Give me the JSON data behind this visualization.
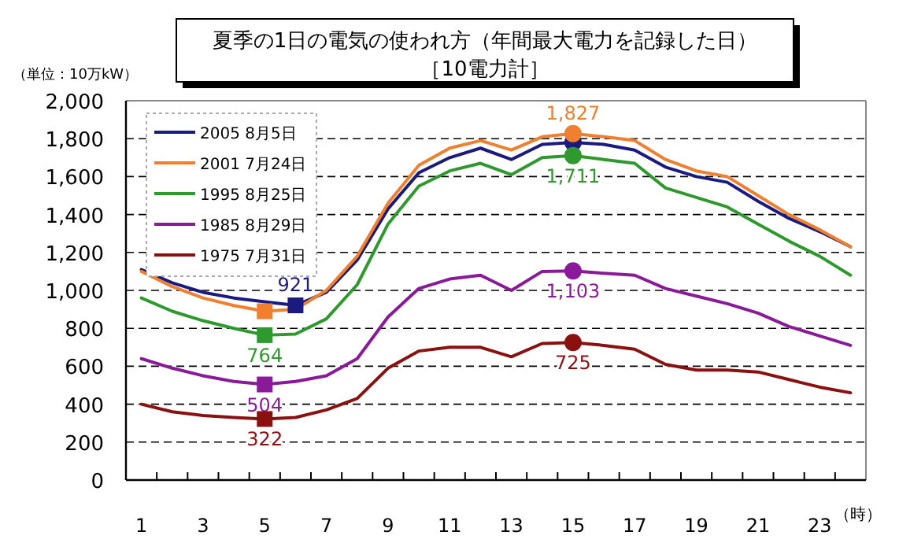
{
  "chart_data": {
    "type": "line",
    "title": "夏季の1日の電気の使われ方（年間最大電力を記録した日）",
    "subtitle": "［10電力計］",
    "ylabel": "（単位：10万kW）",
    "xlabel": "（時）",
    "xlim": [
      0.5,
      24.5
    ],
    "xticks": [
      {
        "value": 1,
        "label": "1"
      },
      {
        "value": 3,
        "label": "3"
      },
      {
        "value": 5,
        "label": "5"
      },
      {
        "value": 7,
        "label": "7"
      },
      {
        "value": 9,
        "label": "9"
      },
      {
        "value": 11,
        "label": "11"
      },
      {
        "value": 13,
        "label": "13"
      },
      {
        "value": 15,
        "label": "15"
      },
      {
        "value": 17,
        "label": "17"
      },
      {
        "value": 19,
        "label": "19"
      },
      {
        "value": 21,
        "label": "21"
      },
      {
        "value": 23,
        "label": "23"
      },
      {
        "value": 1.5,
        "label": null
      },
      {
        "value": 2.5,
        "label": null
      },
      {
        "value": 3.5,
        "label": null
      },
      {
        "value": 4.5,
        "label": null
      },
      {
        "value": 5.5,
        "label": null
      },
      {
        "value": 6.5,
        "label": null
      },
      {
        "value": 7.5,
        "label": null
      },
      {
        "value": 8.5,
        "label": null
      },
      {
        "value": 9.5,
        "label": null
      },
      {
        "value": 10.5,
        "label": null
      },
      {
        "value": 11.5,
        "label": null
      },
      {
        "value": 12.5,
        "label": null
      },
      {
        "value": 13.5,
        "label": null
      },
      {
        "value": 14.5,
        "label": null
      },
      {
        "value": 15.5,
        "label": null
      },
      {
        "value": 16.5,
        "label": null
      },
      {
        "value": 17.5,
        "label": null
      },
      {
        "value": 18.5,
        "label": null
      },
      {
        "value": 19.5,
        "label": null
      },
      {
        "value": 20.5,
        "label": null
      },
      {
        "value": 21.5,
        "label": null
      },
      {
        "value": 22.5,
        "label": null
      },
      {
        "value": 23.5,
        "label": null
      }
    ],
    "ylim": [
      0,
      2000
    ],
    "yticks": [
      {
        "value": 0,
        "label": "0"
      },
      {
        "value": 200,
        "label": "200"
      },
      {
        "value": 400,
        "label": "400"
      },
      {
        "value": 600,
        "label": "600"
      },
      {
        "value": 800,
        "label": "800"
      },
      {
        "value": 1000,
        "label": "1,000"
      },
      {
        "value": 1200,
        "label": "1,200"
      },
      {
        "value": 1400,
        "label": "1,400"
      },
      {
        "value": 1600,
        "label": "1,600"
      },
      {
        "value": 1800,
        "label": "1,800"
      },
      {
        "value": 2000,
        "label": "2,000"
      }
    ],
    "grid": "y",
    "legend": "top left",
    "marker": "none",
    "line_style": "solid",
    "x": [
      1,
      2,
      3,
      4,
      5,
      6,
      7,
      8,
      9,
      10,
      11,
      12,
      13,
      14,
      15,
      16,
      17,
      18,
      19,
      20,
      21,
      22,
      23,
      24
    ],
    "series": [
      {
        "name": "2005 8月5日",
        "color": "#1a1a80",
        "values": [
          1110,
          1040,
          990,
          960,
          940,
          921,
          990,
          1160,
          1430,
          1620,
          1700,
          1750,
          1690,
          1770,
          1780,
          1770,
          1740,
          1650,
          1600,
          1570,
          1470,
          1380,
          1310,
          1230
        ]
      },
      {
        "name": "2001 7月24日",
        "color": "#f08030",
        "values": [
          1100,
          1020,
          960,
          920,
          890,
          900,
          1000,
          1180,
          1460,
          1660,
          1750,
          1790,
          1740,
          1810,
          1827,
          1810,
          1790,
          1690,
          1630,
          1600,
          1500,
          1400,
          1320,
          1230
        ]
      },
      {
        "name": "1995 8月25日",
        "color": "#2e9a2e",
        "values": [
          960,
          890,
          840,
          800,
          764,
          770,
          850,
          1030,
          1350,
          1550,
          1630,
          1670,
          1610,
          1700,
          1711,
          1690,
          1670,
          1540,
          1490,
          1440,
          1350,
          1260,
          1180,
          1080
        ]
      },
      {
        "name": "1985 8月29日",
        "color": "#8b1a9b",
        "values": [
          640,
          590,
          550,
          520,
          504,
          520,
          550,
          640,
          860,
          1010,
          1060,
          1080,
          1000,
          1100,
          1103,
          1090,
          1080,
          1010,
          970,
          930,
          880,
          810,
          760,
          710
        ]
      },
      {
        "name": "1975 7月31日",
        "color": "#8b1010",
        "values": [
          400,
          360,
          340,
          330,
          322,
          330,
          370,
          430,
          590,
          680,
          700,
          700,
          650,
          720,
          725,
          710,
          690,
          610,
          580,
          580,
          570,
          530,
          490,
          460
        ]
      },
      {
        "type": "scatter",
        "marker": "square",
        "color": "#1a1a80",
        "x": [
          6
        ],
        "values": [
          921
        ],
        "value_labels": [
          "921"
        ]
      },
      {
        "type": "scatter",
        "marker": "circle",
        "color": "#1a1a80",
        "x": [
          15
        ],
        "values": [
          1780
        ],
        "value_labels": [
          null
        ]
      },
      {
        "type": "scatter",
        "marker": "square",
        "color": "#f08030",
        "x": [
          5
        ],
        "values": [
          890
        ],
        "value_labels": [
          null
        ]
      },
      {
        "type": "scatter",
        "marker": "circle",
        "color": "#f08030",
        "x": [
          15
        ],
        "values": [
          1827
        ],
        "value_labels": [
          "1,827"
        ]
      },
      {
        "type": "scatter",
        "marker": "square",
        "color": "#2e9a2e",
        "x": [
          5
        ],
        "values": [
          764
        ],
        "value_labels": [
          "764"
        ]
      },
      {
        "type": "scatter",
        "marker": "circle",
        "color": "#2e9a2e",
        "x": [
          15
        ],
        "values": [
          1711
        ],
        "value_labels": [
          "1,711"
        ]
      },
      {
        "type": "scatter",
        "marker": "square",
        "color": "#8b1a9b",
        "x": [
          5
        ],
        "values": [
          504
        ],
        "value_labels": [
          "504"
        ]
      },
      {
        "type": "scatter",
        "marker": "circle",
        "color": "#8b1a9b",
        "x": [
          15
        ],
        "values": [
          1103
        ],
        "value_labels": [
          "1,103"
        ]
      },
      {
        "type": "scatter",
        "marker": "square",
        "color": "#8b1010",
        "x": [
          5
        ],
        "values": [
          322
        ],
        "value_labels": [
          "322"
        ]
      },
      {
        "type": "scatter",
        "marker": "circle",
        "color": "#8b1010",
        "x": [
          15
        ],
        "values": [
          725
        ],
        "value_labels": [
          "725"
        ]
      }
    ]
  }
}
